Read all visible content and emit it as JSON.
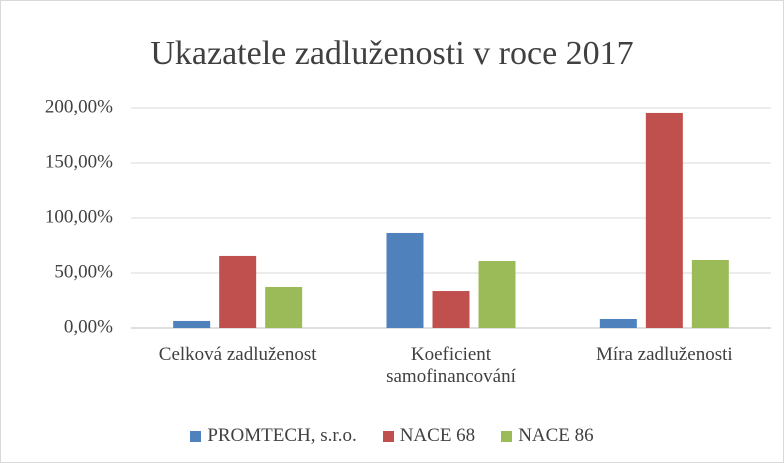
{
  "chart_data": {
    "type": "bar",
    "title": "Ukazatele zadluženosti v roce 2017",
    "categories": [
      "Celková zadluženost",
      "Koeficient samofinancování",
      "Míra zadluženosti"
    ],
    "series": [
      {
        "name": "PROMTECH, s.r.o.",
        "color": "#4f81bd",
        "values": [
          6.4,
          86.4,
          8.2
        ]
      },
      {
        "name": "NACE 68",
        "color": "#c0504d",
        "values": [
          65.5,
          33.6,
          195.5
        ]
      },
      {
        "name": "NACE 86",
        "color": "#9bbb59",
        "values": [
          37.3,
          60.9,
          61.8
        ]
      }
    ],
    "ylim": [
      0,
      200
    ],
    "yticks": [
      {
        "value": 0,
        "label": "0,00%"
      },
      {
        "value": 50,
        "label": "50,00%"
      },
      {
        "value": 100,
        "label": "100,00%"
      },
      {
        "value": 150,
        "label": "150,00%"
      },
      {
        "value": 200,
        "label": "200,00%"
      }
    ],
    "grid": true,
    "legend": "bottom"
  }
}
